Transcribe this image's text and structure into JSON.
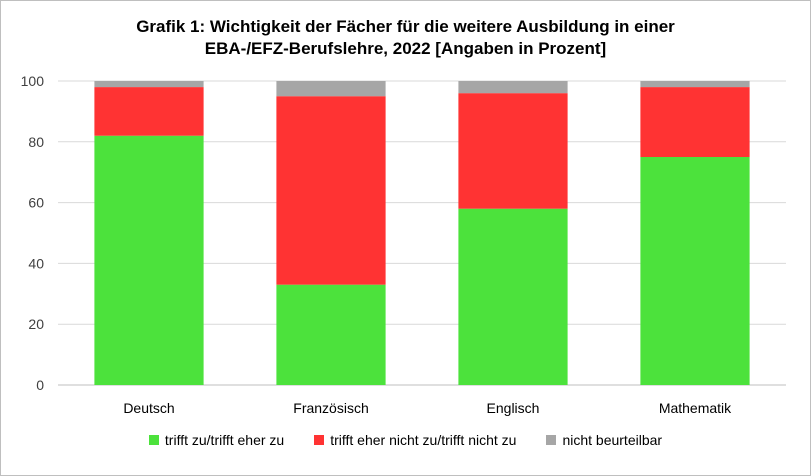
{
  "chart_data": {
    "type": "bar",
    "stacked": true,
    "title_line1": "Grafik 1: Wichtigkeit der Fächer für die weitere Ausbildung in einer",
    "title_line2": "EBA-/EFZ-Berufslehre, 2022 [Angaben in Prozent]",
    "categories": [
      "Deutsch",
      "Französisch",
      "Englisch",
      "Mathematik"
    ],
    "series": [
      {
        "name": "trifft zu/trifft eher zu",
        "color": "#4ce23c",
        "values": [
          82,
          33,
          58,
          75
        ]
      },
      {
        "name": "trifft eher nicht zu/trifft nicht zu",
        "color": "#ff3333",
        "values": [
          16,
          62,
          38,
          23
        ]
      },
      {
        "name": "nicht beurteilbar",
        "color": "#a6a6a6",
        "values": [
          2,
          5,
          4,
          2
        ]
      }
    ],
    "ylim": [
      0,
      100
    ],
    "yticks": [
      0,
      20,
      40,
      60,
      80,
      100
    ],
    "grid": true,
    "legend_position": "bottom",
    "xlabel": "",
    "ylabel": ""
  }
}
